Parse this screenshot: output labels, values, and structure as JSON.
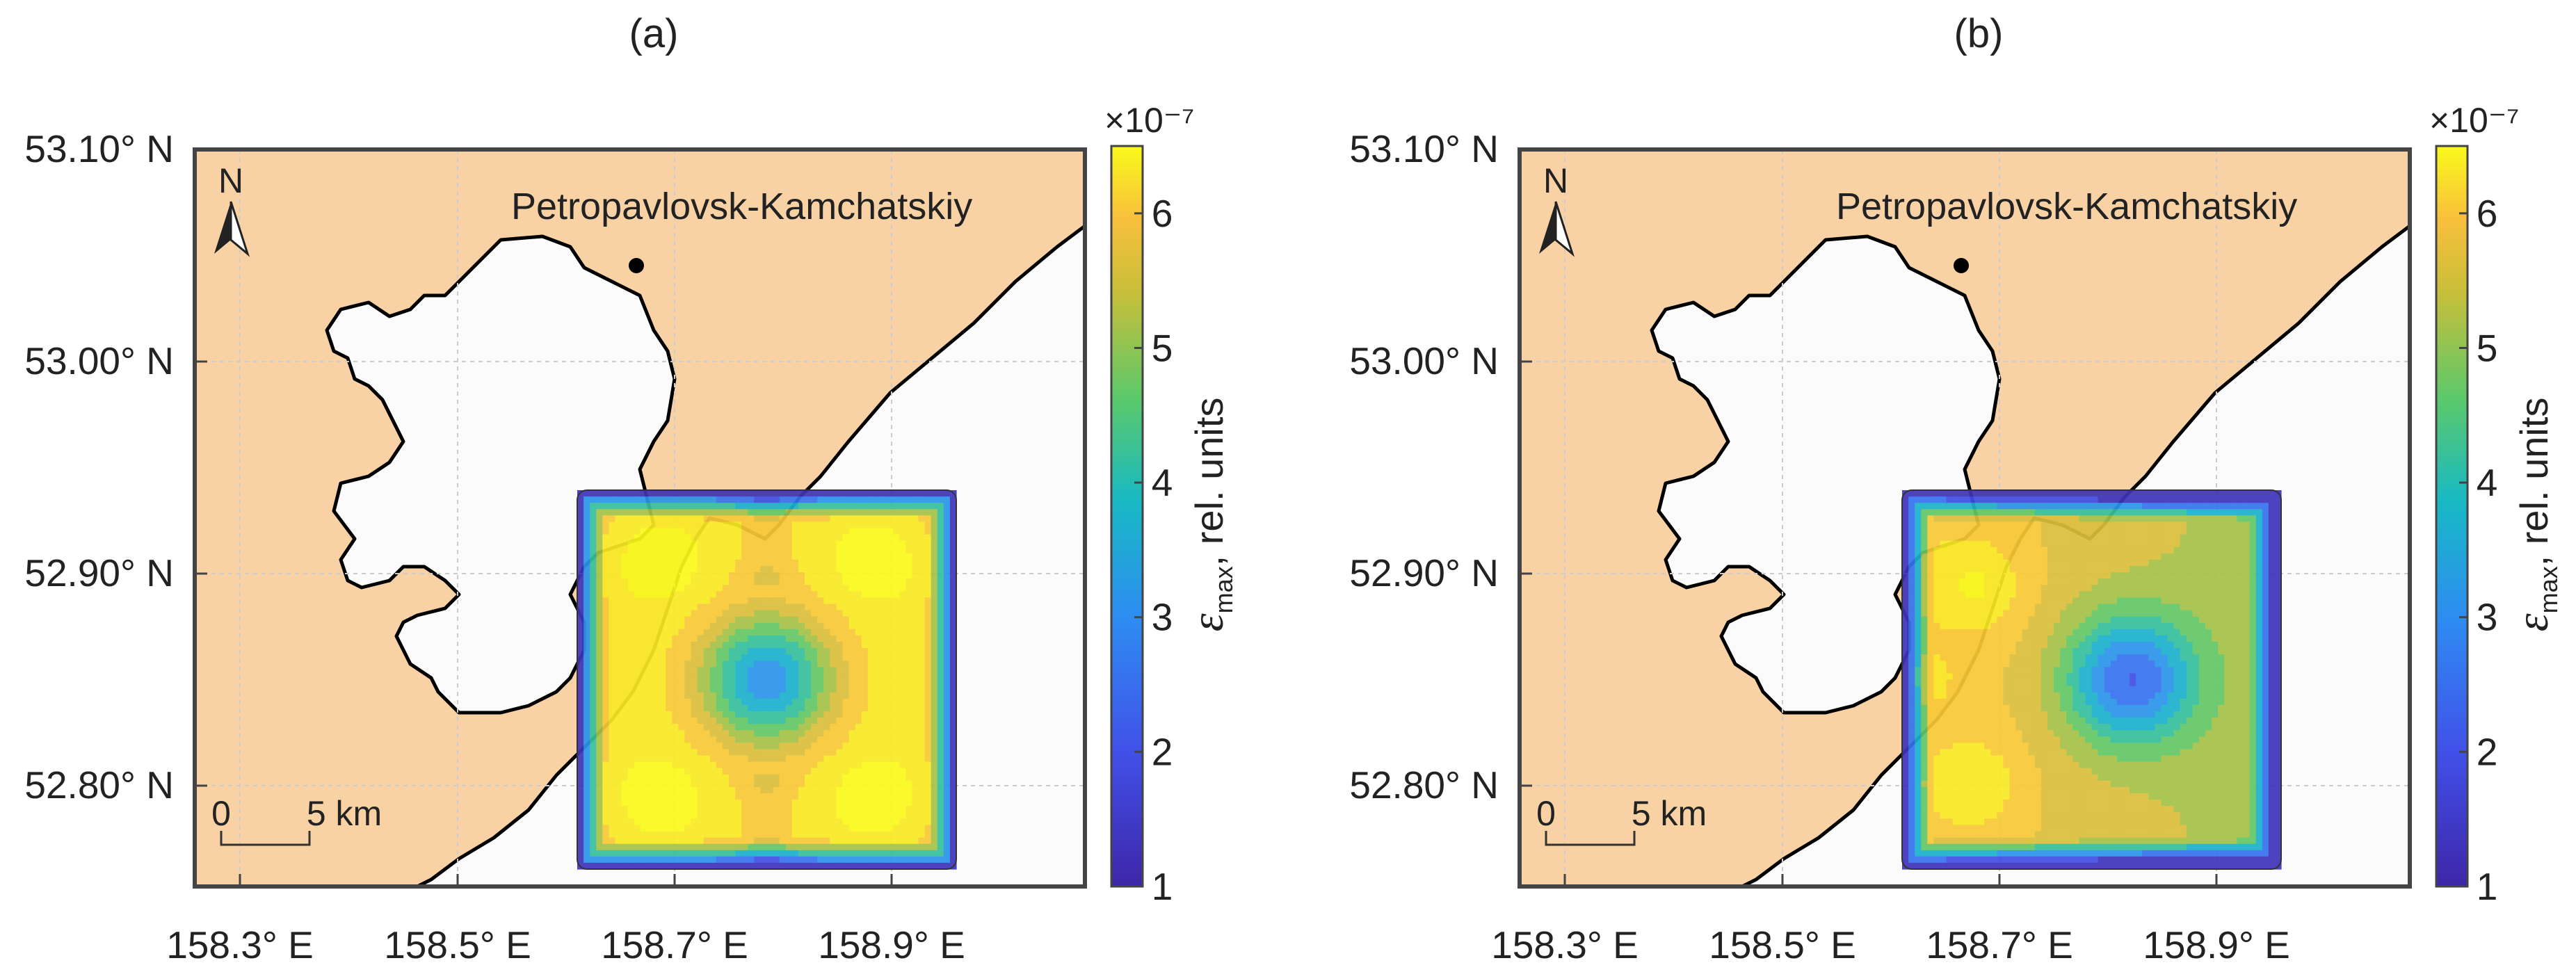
{
  "panels": [
    {
      "label": "(a)",
      "city": "Petropavlovsk-Kamchatskiy",
      "north": "N",
      "scale_zero": "0",
      "scale_label": "5 km",
      "lat_ticks": [
        "53.10° N",
        "53.00° N",
        "52.90° N",
        "52.80° N"
      ],
      "lon_ticks": [
        "158.3° E",
        "158.5° E",
        "158.7° E",
        "158.9° E"
      ],
      "colorbar": {
        "ticks": [
          "1",
          "2",
          "3",
          "4",
          "5",
          "6"
        ],
        "exponent": "×10⁻⁷",
        "label_symbol": "ε",
        "label_sub": "max",
        "label_rest": ", rel. units"
      },
      "field": {
        "range": [
          1,
          6.5
        ],
        "center_min": 2.6,
        "pattern": "symmetric four-lobe maxima"
      }
    },
    {
      "label": "(b)",
      "city": "Petropavlovsk-Kamchatskiy",
      "north": "N",
      "scale_zero": "0",
      "scale_label": "5 km",
      "lat_ticks": [
        "53.10° N",
        "53.00° N",
        "52.90° N",
        "52.80° N"
      ],
      "lon_ticks": [
        "158.3° E",
        "158.5° E",
        "158.7° E",
        "158.9° E"
      ],
      "colorbar": {
        "ticks": [
          "1",
          "2",
          "3",
          "4",
          "5",
          "6"
        ],
        "exponent": "×10⁻⁷",
        "label_symbol": "ε",
        "label_sub": "max",
        "label_rest": ", rel. units"
      },
      "field": {
        "range": [
          1,
          6.5
        ],
        "center_min": 2.4,
        "pattern": "asymmetric maxima on western side"
      }
    }
  ],
  "colors": {
    "land": "#f8d2a4",
    "water": "#fbfbfb",
    "coast": "#000000",
    "colormap": [
      "#3f3ea8",
      "#3f6fe0",
      "#2aa8e0",
      "#20c0b0",
      "#58c87a",
      "#b0c840",
      "#f0b83c",
      "#f8f818"
    ]
  }
}
